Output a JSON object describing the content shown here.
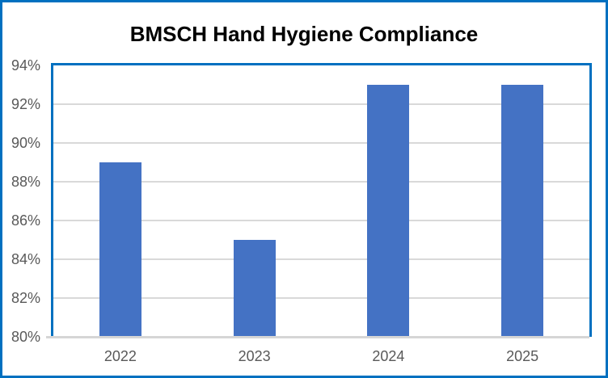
{
  "chart_data": {
    "type": "bar",
    "title": "BMSCH Hand Hygiene Compliance",
    "categories": [
      "2022",
      "2023",
      "2024",
      "2025"
    ],
    "values": [
      89,
      85,
      93,
      93
    ],
    "value_suffix": "%",
    "ylim": [
      80,
      94
    ],
    "ytick_step": 2,
    "ytick_labels": [
      "80%",
      "82%",
      "84%",
      "86%",
      "88%",
      "90%",
      "92%",
      "94%"
    ],
    "grid": true,
    "legend": "none",
    "colors": {
      "bar": "#4472C4",
      "frame_border": "#0070C0",
      "plot_border": "#0070C0",
      "gridline": "#D9D9D9",
      "axis_line": "#D6D6D6",
      "tick_text": "#595959",
      "title_text": "#000000",
      "background": "#FFFFFF"
    }
  }
}
